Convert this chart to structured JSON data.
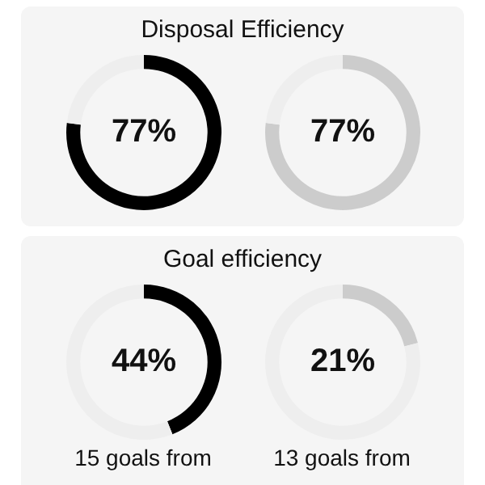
{
  "chart_data": [
    {
      "type": "donut",
      "title": "Disposal Efficiency",
      "categories": [
        null,
        null
      ],
      "values": [
        77,
        23
      ],
      "colors": [
        "#000000",
        "#eeeeee"
      ],
      "value_labels": [
        "77%",
        null
      ]
    },
    {
      "type": "donut",
      "categories": [
        null,
        null
      ],
      "values": [
        77,
        23
      ],
      "colors": [
        "#cccccc",
        "#eeeeee"
      ],
      "value_labels": [
        "77%",
        null
      ]
    },
    {
      "type": "donut",
      "title": "Goal efficiency",
      "categories": [
        null,
        null
      ],
      "values": [
        44,
        56
      ],
      "colors": [
        "#000000",
        "#eeeeee"
      ],
      "value_labels": [
        "44%",
        null
      ],
      "annotations": [
        "15 goals from"
      ]
    },
    {
      "type": "donut",
      "categories": [
        null,
        null
      ],
      "values": [
        21,
        79
      ],
      "colors": [
        "#cccccc",
        "#eeeeee"
      ],
      "value_labels": [
        "21%",
        null
      ],
      "annotations": [
        "13 goals from"
      ]
    }
  ]
}
